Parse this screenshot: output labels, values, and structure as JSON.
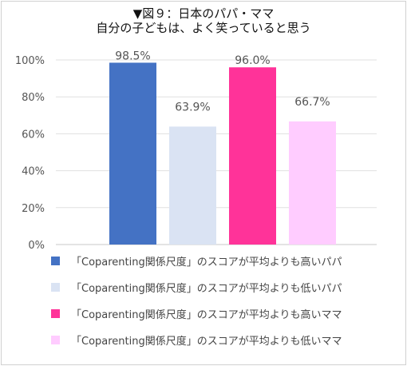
{
  "title_line1": "▼図９：日本のパパ・ママ",
  "title_line2": "自分の子どもは、よく笑っていると思う",
  "chart_data": {
    "type": "bar",
    "ylim": [
      0,
      100
    ],
    "yticks": [
      0,
      20,
      40,
      60,
      80,
      100
    ],
    "ytick_labels": [
      "0%",
      "20%",
      "40%",
      "60%",
      "80%",
      "100%"
    ],
    "grid": true,
    "legend_position": "bottom",
    "series": [
      {
        "name": "「Coparenting関係尺度」のスコアが平均よりも高いパパ",
        "value": 98.5,
        "label": "98.5%",
        "color": "#4472C4"
      },
      {
        "name": "「Coparenting関係尺度」のスコアが平均よりも低いパパ",
        "value": 63.9,
        "label": "63.9%",
        "color": "#DAE3F3"
      },
      {
        "name": "「Coparenting関係尺度」のスコアが平均よりも高いママ",
        "value": 96.0,
        "label": "96.0%",
        "color": "#FF3399"
      },
      {
        "name": "「Coparenting関係尺度」のスコアが平均よりも低いママ",
        "value": 66.7,
        "label": "66.7%",
        "color": "#FFCCFF"
      }
    ]
  }
}
